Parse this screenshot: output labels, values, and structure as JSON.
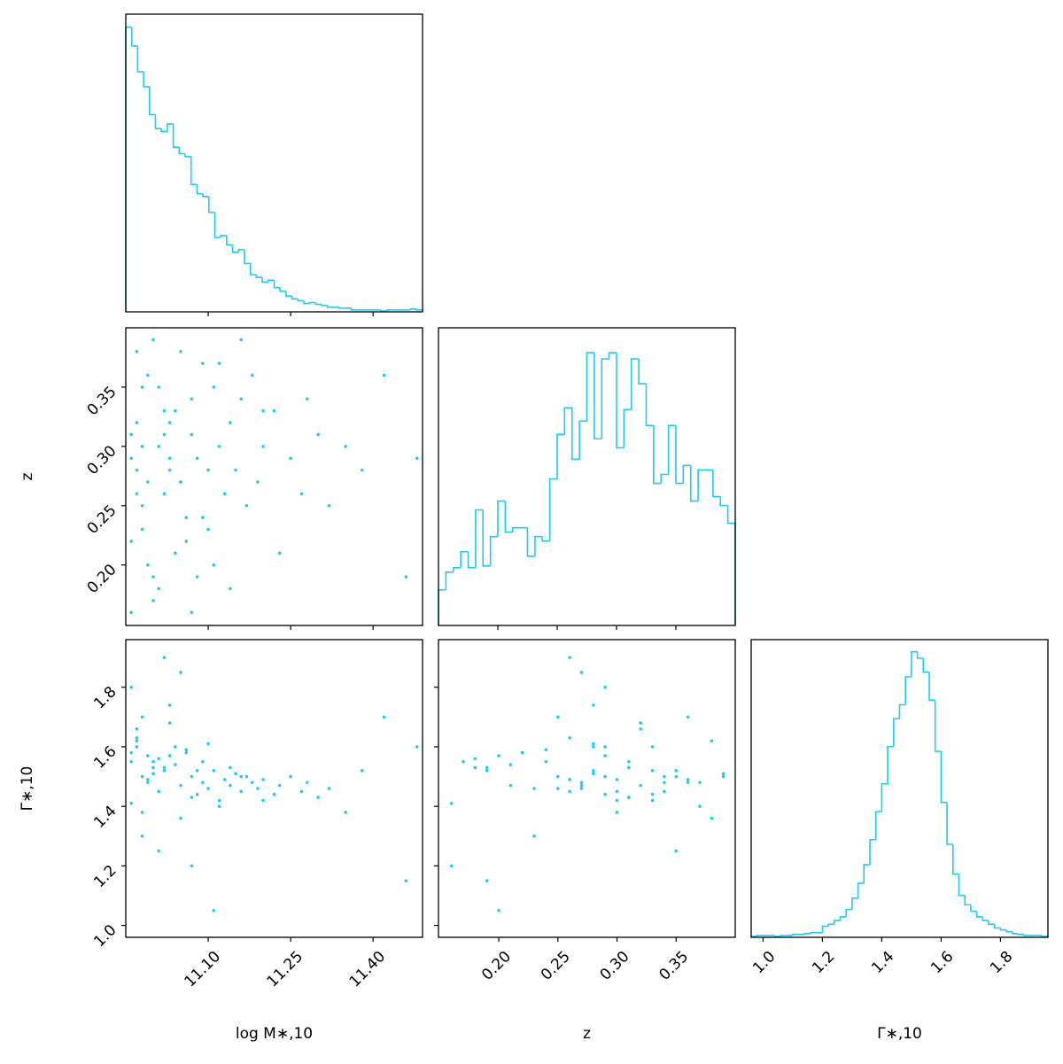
{
  "chart_data": [
    {
      "type": "histogram",
      "color": "#1ecbf5",
      "xlim": [
        10.95,
        11.49
      ],
      "ylim": [
        0,
        320
      ],
      "xticks": [
        {
          "value": 11.1,
          "label": "11.10"
        },
        11.25,
        {
          "value": 11.4,
          "label": "11.40"
        }
      ],
      "bins": [
        10.95,
        10.9608,
        10.9716,
        10.9824,
        10.9932,
        11.004,
        11.0148,
        11.0256,
        11.0364,
        11.0472,
        11.058,
        11.0688,
        11.0796,
        11.0904,
        11.1012,
        11.112,
        11.1228,
        11.1336,
        11.1444,
        11.1552,
        11.166,
        11.1768,
        11.1876,
        11.1984,
        11.2092,
        11.22,
        11.2308,
        11.2416,
        11.2524,
        11.2632,
        11.274,
        11.2848,
        11.2956,
        11.3064,
        11.3172,
        11.328,
        11.3388,
        11.3496,
        11.3604,
        11.3712,
        11.382,
        11.3928,
        11.4036,
        11.4144,
        11.4252,
        11.436,
        11.4468,
        11.4576,
        11.4684,
        11.4792,
        11.49
      ],
      "values": [
        306,
        286,
        258,
        242,
        212,
        197,
        194,
        202,
        177,
        170,
        167,
        137,
        127,
        124,
        107,
        80,
        82,
        72,
        64,
        67,
        52,
        40,
        37,
        32,
        34,
        26,
        22,
        17,
        14,
        12,
        9,
        10,
        8,
        7,
        5,
        5,
        4,
        4,
        2,
        2,
        2,
        2,
        2,
        1,
        2,
        2,
        2,
        2,
        3,
        2
      ]
    },
    {
      "type": "scatter",
      "color": "#1ecbf5",
      "xlim": [
        10.95,
        11.49
      ],
      "ylim": [
        0.149,
        0.4
      ],
      "xticks": [
        {
          "value": 11.1,
          "label": "11.10"
        },
        11.25,
        {
          "value": 11.4,
          "label": "11.40"
        }
      ],
      "yticks": [
        {
          "value": 0.2,
          "label": "0.20"
        },
        0.25,
        {
          "value": 0.3,
          "label": "0.30"
        },
        0.35
      ],
      "ylabel": "z",
      "x": [
        10.96,
        10.97,
        10.98,
        10.96,
        10.99,
        11.0,
        10.97,
        11.01,
        10.98,
        11.02,
        10.96,
        11.03,
        10.99,
        11.04,
        10.97,
        11.05,
        11.0,
        11.06,
        10.98,
        11.07,
        11.01,
        11.08,
        10.97,
        11.09,
        11.02,
        11.1,
        11.03,
        11.11,
        10.99,
        11.12,
        11.04,
        11.13,
        11.0,
        11.14,
        11.05,
        11.15,
        11.06,
        11.16,
        10.96,
        11.17,
        11.07,
        11.18,
        11.08,
        11.19,
        11.01,
        11.2,
        11.09,
        11.22,
        11.1,
        11.23,
        11.03,
        11.25,
        11.12,
        11.27,
        10.98,
        11.28,
        11.14,
        11.3,
        11.05,
        11.32,
        11.16,
        11.35,
        11.07,
        11.38,
        11.2,
        11.42,
        11.11,
        11.46,
        11.48,
        11.02
      ],
      "y": [
        0.31,
        0.28,
        0.35,
        0.22,
        0.27,
        0.19,
        0.38,
        0.3,
        0.25,
        0.33,
        0.16,
        0.29,
        0.36,
        0.21,
        0.32,
        0.27,
        0.39,
        0.24,
        0.3,
        0.34,
        0.18,
        0.29,
        0.26,
        0.37,
        0.31,
        0.23,
        0.28,
        0.35,
        0.2,
        0.3,
        0.33,
        0.26,
        0.17,
        0.32,
        0.38,
        0.28,
        0.22,
        0.34,
        0.29,
        0.25,
        0.31,
        0.36,
        0.19,
        0.27,
        0.35,
        0.3,
        0.24,
        0.33,
        0.28,
        0.21,
        0.32,
        0.29,
        0.37,
        0.26,
        0.23,
        0.34,
        0.18,
        0.31,
        0.27,
        0.25,
        0.39,
        0.3,
        0.16,
        0.28,
        0.33,
        0.36,
        0.2,
        0.19,
        0.29,
        0.26
      ]
    },
    {
      "type": "histogram",
      "color": "#1ecbf5",
      "xlim": [
        0.15,
        0.4
      ],
      "ylim": [
        0,
        335
      ],
      "xticks": [
        {
          "value": 0.2,
          "label": "0.20"
        },
        0.25,
        {
          "value": 0.3,
          "label": "0.30"
        },
        0.35
      ],
      "bins": [
        0.15,
        0.15625,
        0.1625,
        0.16875,
        0.175,
        0.18125,
        0.1875,
        0.19375,
        0.2,
        0.20625,
        0.2125,
        0.21875,
        0.225,
        0.23125,
        0.2375,
        0.24375,
        0.25,
        0.25625,
        0.2625,
        0.26875,
        0.275,
        0.28125,
        0.2875,
        0.29375,
        0.3,
        0.30625,
        0.3125,
        0.31875,
        0.325,
        0.33125,
        0.3375,
        0.34375,
        0.35,
        0.35625,
        0.3625,
        0.36875,
        0.375,
        0.38125,
        0.3875,
        0.39375,
        0.4
      ],
      "values": [
        40,
        60,
        65,
        83,
        65,
        130,
        67,
        100,
        140,
        105,
        110,
        110,
        78,
        100,
        95,
        165,
        215,
        245,
        187,
        230,
        307,
        210,
        300,
        307,
        200,
        243,
        300,
        272,
        225,
        160,
        170,
        225,
        160,
        180,
        140,
        175,
        175,
        145,
        135,
        115
      ]
    },
    {
      "type": "scatter",
      "color": "#1ecbf5",
      "xlim": [
        10.95,
        11.49
      ],
      "ylim": [
        0.96,
        1.96
      ],
      "xticks": [
        {
          "value": 11.1,
          "label": "11.10"
        },
        11.25,
        {
          "value": 11.4,
          "label": "11.40"
        }
      ],
      "yticks": [
        {
          "value": 1.0,
          "label": "1.0"
        },
        1.2,
        1.4,
        1.6,
        1.8
      ],
      "xlabel": "log M∗,10",
      "ylabel": "Γ∗,10",
      "x": [
        10.96,
        10.97,
        10.98,
        10.96,
        10.99,
        11.0,
        10.97,
        11.01,
        10.98,
        11.02,
        10.96,
        11.03,
        10.99,
        11.04,
        10.97,
        11.05,
        11.0,
        11.06,
        10.98,
        11.07,
        11.01,
        11.08,
        10.97,
        11.09,
        11.02,
        11.1,
        11.03,
        11.11,
        10.99,
        11.12,
        11.04,
        11.13,
        11.0,
        11.14,
        11.05,
        11.15,
        11.06,
        11.16,
        10.96,
        11.17,
        11.07,
        11.18,
        11.08,
        11.19,
        11.01,
        11.2,
        11.09,
        11.22,
        11.1,
        11.23,
        11.03,
        11.25,
        11.12,
        11.27,
        10.98,
        11.28,
        11.14,
        11.3,
        11.05,
        11.32,
        11.16,
        11.35,
        11.07,
        11.38,
        11.2,
        11.42,
        11.11,
        11.46,
        11.48,
        11.02
      ],
      "y": [
        1.55,
        1.6,
        1.5,
        1.58,
        1.48,
        1.53,
        1.62,
        1.45,
        1.7,
        1.52,
        1.41,
        1.57,
        1.49,
        1.54,
        1.66,
        1.47,
        1.51,
        1.59,
        1.38,
        1.5,
        1.56,
        1.44,
        1.63,
        1.48,
        1.53,
        1.46,
        1.74,
        1.52,
        1.57,
        1.42,
        1.6,
        1.49,
        1.55,
        1.47,
        1.36,
        1.51,
        1.58,
        1.45,
        1.8,
        1.5,
        1.43,
        1.48,
        1.52,
        1.46,
        1.25,
        1.49,
        1.55,
        1.44,
        1.61,
        1.47,
        1.68,
        1.5,
        1.4,
        1.45,
        1.3,
        1.48,
        1.53,
        1.43,
        1.85,
        1.46,
        1.5,
        1.38,
        1.2,
        1.52,
        1.42,
        1.7,
        1.05,
        1.15,
        1.6,
        1.9
      ]
    },
    {
      "type": "scatter",
      "color": "#1ecbf5",
      "xlim": [
        0.149,
        0.4
      ],
      "ylim": [
        0.96,
        1.96
      ],
      "xticks": [
        {
          "value": 0.2,
          "label": "0.20"
        },
        0.25,
        {
          "value": 0.3,
          "label": "0.30"
        },
        0.35
      ],
      "yticks": [
        1.0,
        1.2,
        1.4,
        1.6,
        1.8
      ],
      "xlabel": "z",
      "x": [
        0.31,
        0.28,
        0.35,
        0.22,
        0.27,
        0.19,
        0.38,
        0.3,
        0.25,
        0.33,
        0.16,
        0.29,
        0.36,
        0.21,
        0.32,
        0.27,
        0.39,
        0.24,
        0.3,
        0.34,
        0.18,
        0.29,
        0.26,
        0.37,
        0.31,
        0.23,
        0.28,
        0.35,
        0.2,
        0.3,
        0.33,
        0.26,
        0.17,
        0.32,
        0.38,
        0.28,
        0.22,
        0.34,
        0.29,
        0.25,
        0.31,
        0.36,
        0.19,
        0.27,
        0.35,
        0.3,
        0.24,
        0.33,
        0.28,
        0.21,
        0.32,
        0.29,
        0.37,
        0.26,
        0.23,
        0.34,
        0.18,
        0.31,
        0.27,
        0.25,
        0.39,
        0.3,
        0.16,
        0.28,
        0.33,
        0.36,
        0.2,
        0.19,
        0.29,
        0.26
      ],
      "y": [
        1.55,
        1.6,
        1.5,
        1.58,
        1.48,
        1.53,
        1.62,
        1.45,
        1.7,
        1.52,
        1.41,
        1.57,
        1.49,
        1.54,
        1.66,
        1.47,
        1.51,
        1.59,
        1.38,
        1.5,
        1.56,
        1.44,
        1.63,
        1.48,
        1.53,
        1.46,
        1.74,
        1.52,
        1.57,
        1.42,
        1.6,
        1.49,
        1.55,
        1.47,
        1.36,
        1.51,
        1.58,
        1.45,
        1.8,
        1.5,
        1.43,
        1.48,
        1.52,
        1.46,
        1.25,
        1.49,
        1.55,
        1.44,
        1.61,
        1.47,
        1.68,
        1.5,
        1.4,
        1.45,
        1.3,
        1.48,
        1.53,
        1.43,
        1.85,
        1.46,
        1.5,
        1.38,
        1.2,
        1.52,
        1.42,
        1.7,
        1.05,
        1.15,
        1.6,
        1.9
      ]
    },
    {
      "type": "histogram",
      "color": "#1ecbf5",
      "xlim": [
        0.96,
        1.96
      ],
      "ylim": [
        0,
        320
      ],
      "xticks": [
        {
          "value": 1.0,
          "label": "1.0"
        },
        1.2,
        1.4,
        1.6,
        1.8
      ],
      "xlabel": "Γ∗,10",
      "bins": [
        0.96,
        0.98,
        1.0,
        1.02,
        1.04,
        1.06,
        1.08,
        1.1,
        1.12,
        1.14,
        1.16,
        1.18,
        1.2,
        1.22,
        1.24,
        1.26,
        1.28,
        1.3,
        1.32,
        1.34,
        1.36,
        1.38,
        1.4,
        1.42,
        1.44,
        1.46,
        1.48,
        1.5,
        1.52,
        1.54,
        1.56,
        1.58,
        1.6,
        1.62,
        1.64,
        1.66,
        1.68,
        1.7,
        1.72,
        1.74,
        1.76,
        1.78,
        1.8,
        1.82,
        1.84,
        1.86,
        1.88,
        1.9,
        1.92,
        1.94,
        1.96
      ],
      "values": [
        1,
        2,
        2,
        2,
        1,
        2,
        2,
        3,
        3,
        4,
        5,
        5,
        12,
        14,
        18,
        22,
        30,
        42,
        58,
        78,
        105,
        135,
        165,
        205,
        235,
        250,
        280,
        307,
        300,
        285,
        255,
        200,
        145,
        100,
        68,
        45,
        35,
        28,
        22,
        18,
        14,
        10,
        8,
        6,
        4,
        3,
        2,
        2,
        2,
        1
      ]
    }
  ]
}
